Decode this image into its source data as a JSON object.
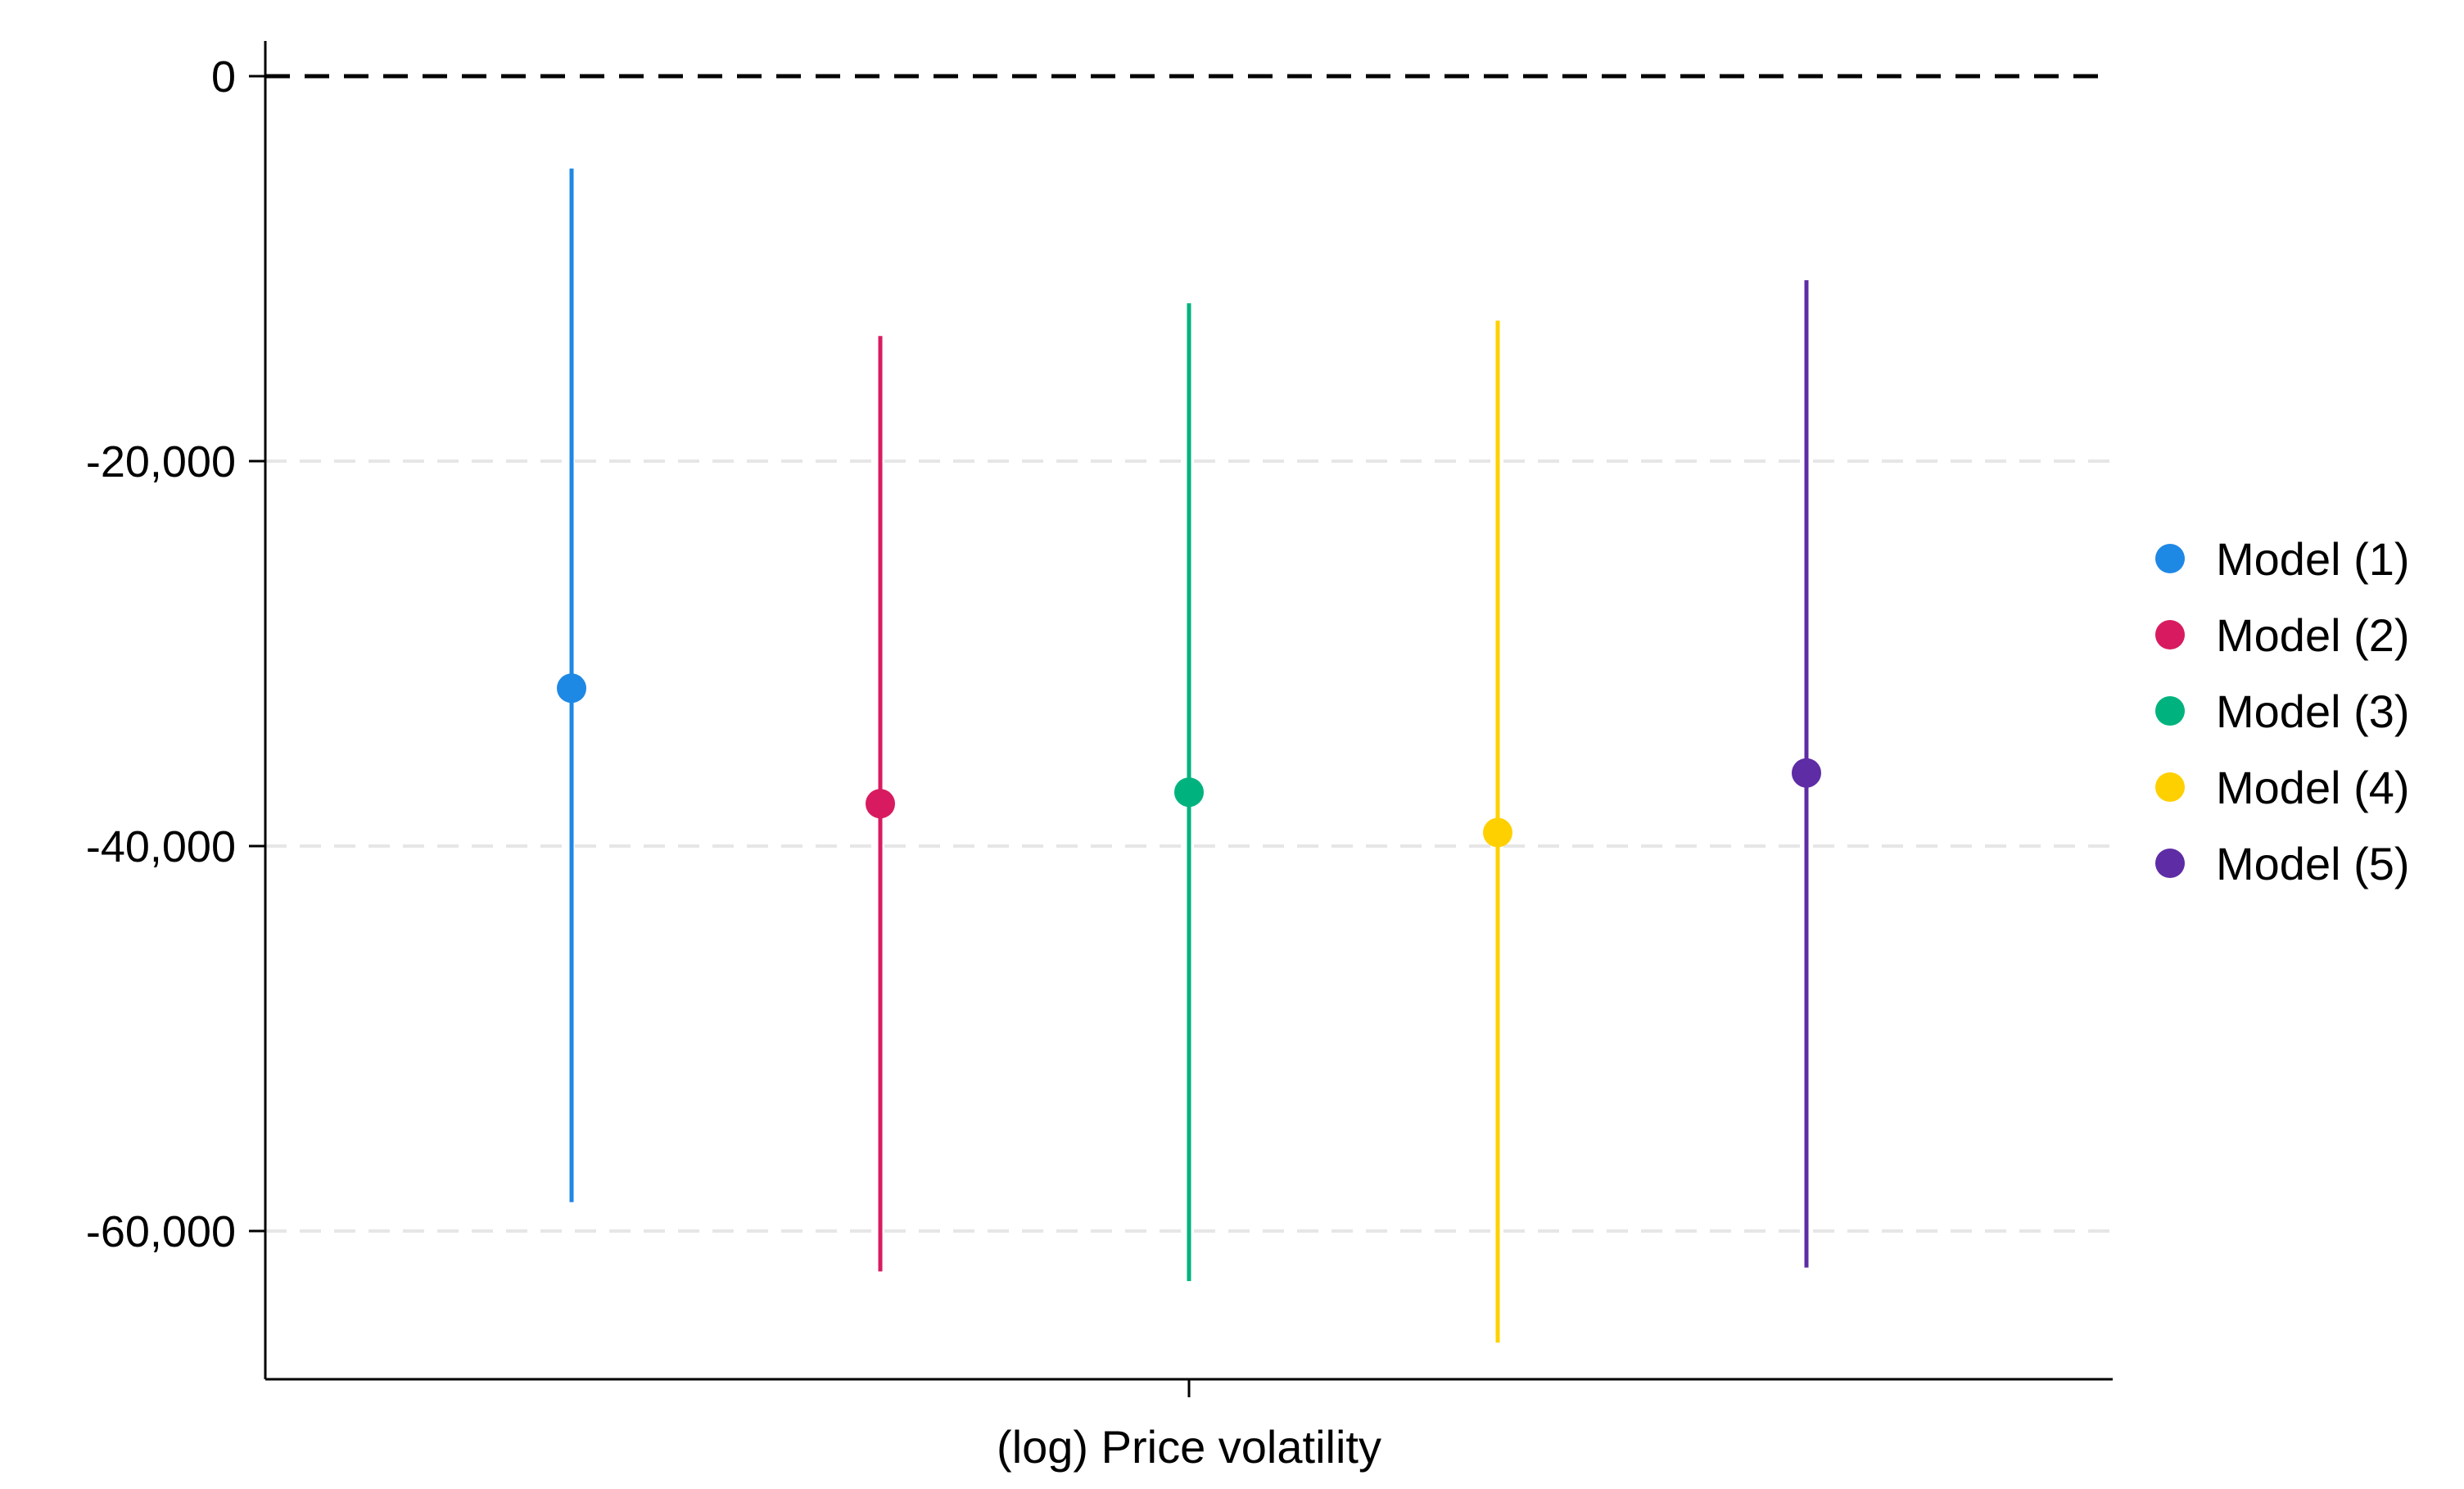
{
  "chart_data": {
    "type": "scatter",
    "subtype": "coefficient-plot-with-confidence-intervals",
    "categories": [
      "(log) Price volatility"
    ],
    "ylim": [
      -67500,
      1500
    ],
    "yticks": [
      0,
      -20000,
      -40000,
      -60000
    ],
    "ytick_labels": [
      "0",
      "-20,000",
      "-40,000",
      "-60,000"
    ],
    "reference_line": {
      "y": 0,
      "style": "dashed"
    },
    "grid": {
      "y": true,
      "x": false,
      "style": "dashed-light"
    },
    "legend": {
      "position": "right"
    },
    "series": [
      {
        "name": "Model (1)",
        "color": "#1E88E5",
        "estimate": -31800,
        "ci_low": -58500,
        "ci_high": -4800
      },
      {
        "name": "Model (2)",
        "color": "#D81B60",
        "estimate": -37800,
        "ci_low": -62100,
        "ci_high": -13500
      },
      {
        "name": "Model (3)",
        "color": "#00B37E",
        "estimate": -37200,
        "ci_low": -62600,
        "ci_high": -11800
      },
      {
        "name": "Model (4)",
        "color": "#FFD000",
        "estimate": -39300,
        "ci_low": -65800,
        "ci_high": -12700
      },
      {
        "name": "Model (5)",
        "color": "#5E2CA5",
        "estimate": -36200,
        "ci_low": -61900,
        "ci_high": -10600
      }
    ]
  }
}
